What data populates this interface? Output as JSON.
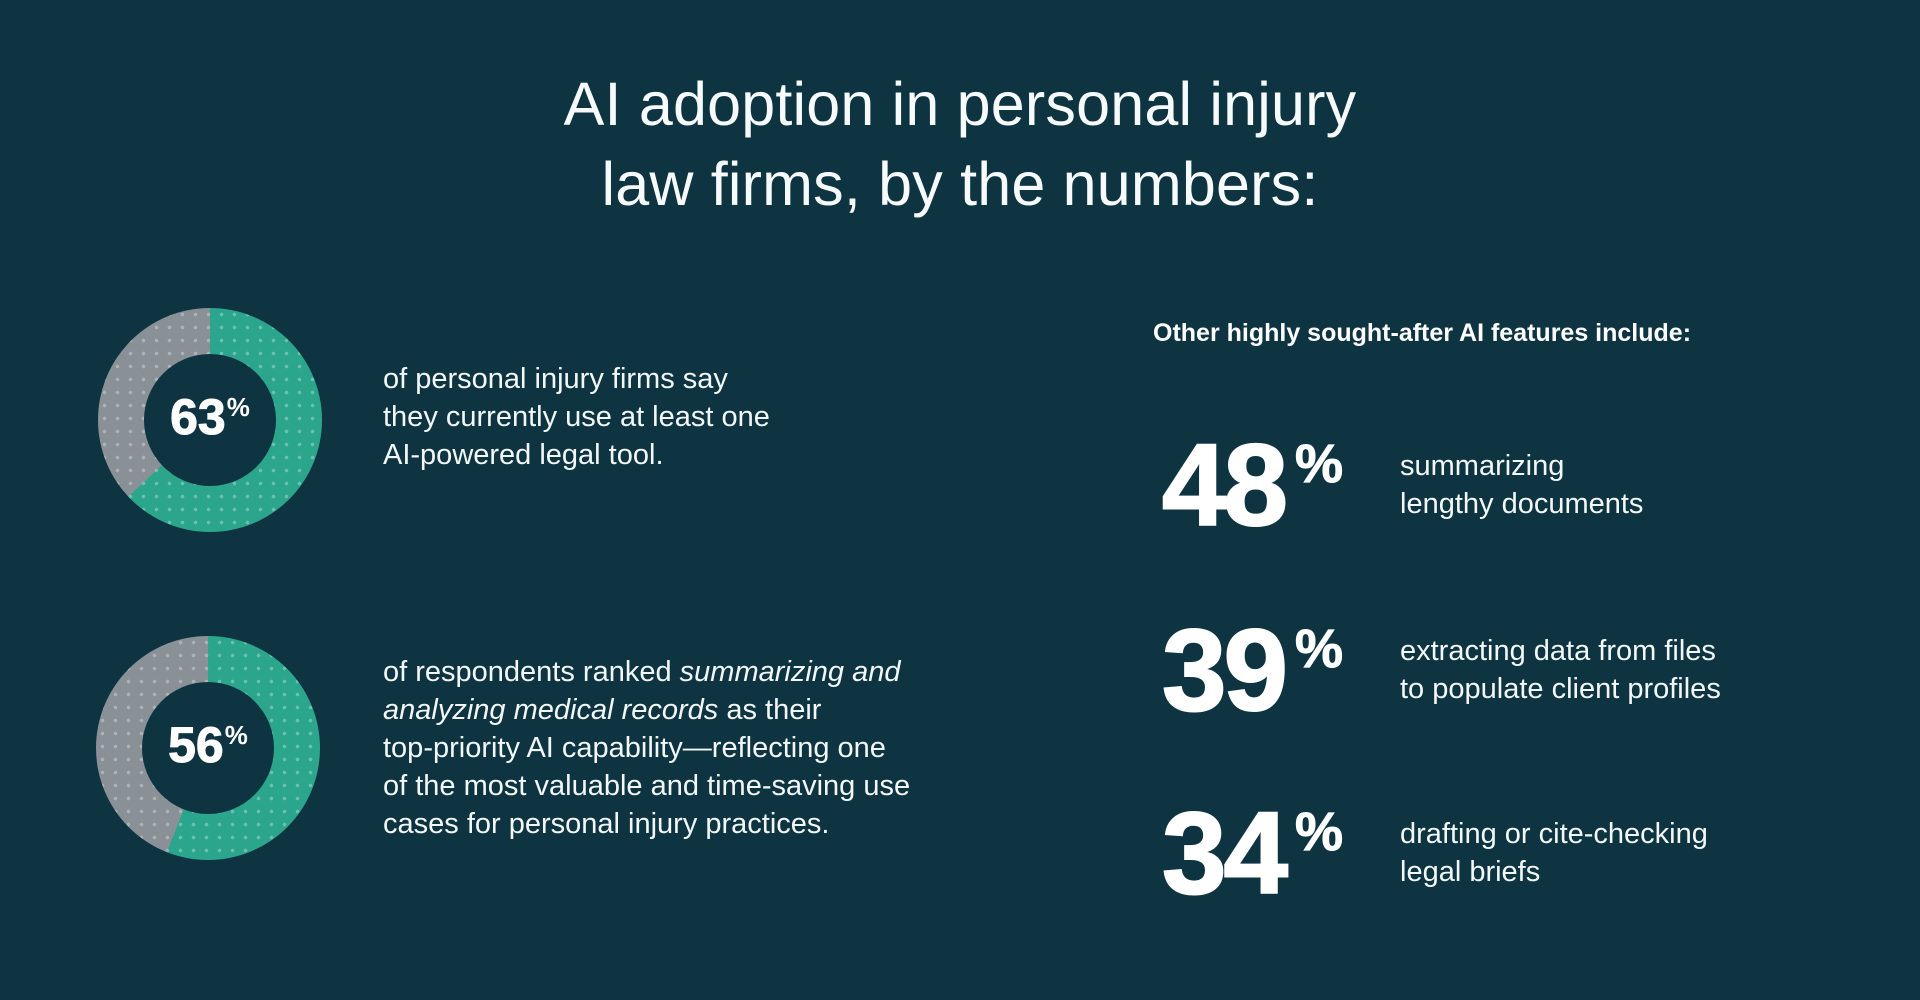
{
  "colors": {
    "background": "#0E3442",
    "teal": "#2BA68D",
    "gray": "#8A9196",
    "text": "#FFFFFF"
  },
  "title": {
    "line1": "AI adoption in personal injury",
    "line2": "law firms, by the numbers:"
  },
  "left_stats": [
    {
      "value": 63,
      "display": "63",
      "percent_sign": "%",
      "description_lines": [
        "of personal injury firms say",
        "they currently use at least one",
        "AI-powered legal tool."
      ]
    },
    {
      "value": 56,
      "display": "56",
      "percent_sign": "%",
      "description_rich": {
        "line1_pre": "of respondents ranked ",
        "line1_italic": "summarizing and",
        "line2_italic": "analyzing medical records",
        "line2_post": " as their",
        "line3": "top-priority AI capability—reflecting one",
        "line4": "of the most valuable and time-saving use",
        "line5": "cases for personal injury practices."
      }
    }
  ],
  "right_panel": {
    "heading": "Other highly sought-after AI features include:",
    "features": [
      {
        "value": 48,
        "display": "48",
        "percent_sign": "%",
        "label_lines": [
          "summarizing",
          "lengthy documents"
        ]
      },
      {
        "value": 39,
        "display": "39",
        "percent_sign": "%",
        "label_lines": [
          "extracting data from files",
          "to populate client profiles"
        ]
      },
      {
        "value": 34,
        "display": "34",
        "percent_sign": "%",
        "label_lines": [
          "drafting or cite-checking",
          "legal briefs"
        ]
      }
    ]
  },
  "chart_data": [
    {
      "type": "pie",
      "subtype": "donut",
      "title": "Personal injury firms currently using at least one AI-powered legal tool",
      "labels": [
        "use at least one AI-powered legal tool",
        "remainder"
      ],
      "values": [
        63,
        37
      ],
      "colors": [
        "#2BA68D",
        "#8A9196"
      ],
      "center_label": "63%",
      "start_angle_deg": 0,
      "direction": "clockwise"
    },
    {
      "type": "pie",
      "subtype": "donut",
      "title": "Respondents ranking summarizing and analyzing medical records as top-priority AI capability",
      "labels": [
        "ranked it top priority",
        "remainder"
      ],
      "values": [
        56,
        44
      ],
      "colors": [
        "#2BA68D",
        "#8A9196"
      ],
      "center_label": "56%",
      "start_angle_deg": 0,
      "direction": "clockwise"
    },
    {
      "type": "bar",
      "title": "Other highly sought-after AI features include:",
      "categories": [
        "summarizing lengthy documents",
        "extracting data from files to populate client profiles",
        "drafting or cite-checking legal briefs"
      ],
      "values": [
        48,
        39,
        34
      ],
      "unit": "%"
    }
  ]
}
